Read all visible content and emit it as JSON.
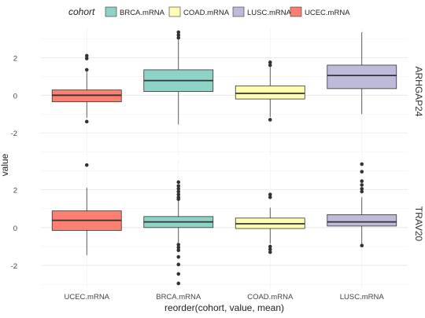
{
  "chart_data": {
    "type": "boxplot",
    "xlabel": "reorder(cohort, value, mean)",
    "ylabel": "value",
    "legend": {
      "title": "cohort",
      "placement": "top",
      "entries": [
        {
          "name": "BRCA.mRNA",
          "color": "#8dd3c7"
        },
        {
          "name": "COAD.mRNA",
          "color": "#ffffb3"
        },
        {
          "name": "LUSC.mRNA",
          "color": "#bebada"
        },
        {
          "name": "UCEC.mRNA",
          "color": "#fb8072"
        }
      ]
    },
    "categories": [
      "UCEC.mRNA",
      "BRCA.mRNA",
      "COAD.mRNA",
      "LUSC.mRNA"
    ],
    "grid": true,
    "panels": [
      {
        "strip": "ARHGAP24",
        "ylim": [
          -3.2,
          3.6
        ],
        "yticks": [
          -2,
          0,
          2
        ],
        "ytick_labels": [
          "-2",
          "0",
          "2"
        ],
        "boxes": [
          {
            "cohort": "UCEC.mRNA",
            "q1": -0.35,
            "median": 0.0,
            "q3": 0.28,
            "whisker_low": -1.2,
            "whisker_high": 1.25,
            "outliers": [
              2.1,
              1.95,
              1.35,
              -1.4
            ]
          },
          {
            "cohort": "BRCA.mRNA",
            "q1": 0.2,
            "median": 0.78,
            "q3": 1.35,
            "whisker_low": -1.55,
            "whisker_high": 2.95,
            "outliers": [
              3.35,
              3.2,
              3.05
            ]
          },
          {
            "cohort": "COAD.mRNA",
            "q1": -0.2,
            "median": 0.1,
            "q3": 0.5,
            "whisker_low": -1.15,
            "whisker_high": 1.5,
            "outliers": [
              1.75,
              1.6,
              -1.3
            ]
          },
          {
            "cohort": "LUSC.mRNA",
            "q1": 0.35,
            "median": 1.05,
            "q3": 1.6,
            "whisker_low": -1.0,
            "whisker_high": 3.35,
            "outliers": []
          }
        ]
      },
      {
        "strip": "TRAV20",
        "ylim": [
          -3.2,
          3.6
        ],
        "yticks": [
          -2,
          0,
          2
        ],
        "ytick_labels": [
          "-2",
          "0",
          "2"
        ],
        "boxes": [
          {
            "cohort": "UCEC.mRNA",
            "q1": -0.15,
            "median": 0.38,
            "q3": 0.88,
            "whisker_low": -1.45,
            "whisker_high": 2.1,
            "outliers": [
              3.3
            ]
          },
          {
            "cohort": "BRCA.mRNA",
            "q1": 0.0,
            "median": 0.3,
            "q3": 0.58,
            "whisker_low": -0.8,
            "whisker_high": 1.4,
            "outliers": [
              2.4,
              2.2,
              2.05,
              1.9,
              1.75,
              1.6,
              1.5,
              -0.9,
              -1.05,
              -1.2,
              -1.55,
              -1.95,
              -2.45,
              -2.95
            ]
          },
          {
            "cohort": "COAD.mRNA",
            "q1": -0.05,
            "median": 0.2,
            "q3": 0.5,
            "whisker_low": -0.85,
            "whisker_high": 1.05,
            "outliers": [
              1.75,
              1.6,
              -1.0,
              -1.15,
              -1.3
            ]
          },
          {
            "cohort": "LUSC.mRNA",
            "q1": 0.08,
            "median": 0.3,
            "q3": 0.68,
            "whisker_low": -0.85,
            "whisker_high": 1.6,
            "outliers": [
              3.35,
              2.95,
              2.45,
              2.25,
              2.05,
              1.9,
              -0.95
            ]
          }
        ]
      }
    ]
  }
}
